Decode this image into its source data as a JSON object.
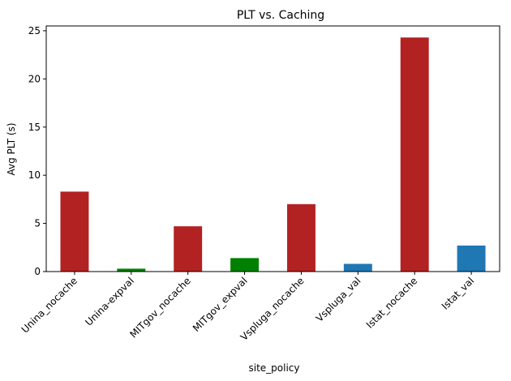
{
  "chart_data": {
    "type": "bar",
    "title": "PLT vs. Caching",
    "xlabel": "site_policy",
    "ylabel": "Avg PLT (s)",
    "ylim": [
      0,
      25.5
    ],
    "yticks": [
      0,
      5,
      10,
      15,
      20,
      25
    ],
    "grid": false,
    "legend": "none",
    "categories": [
      "Unina_nocache",
      "Unina-expval",
      "MITgov_nocache",
      "MITgov_expval",
      "Vspluga_nocache",
      "Vspluga_val",
      "Istat_nocache",
      "Istat_val"
    ],
    "values": [
      8.3,
      0.3,
      4.7,
      1.4,
      7.0,
      0.8,
      24.3,
      2.7
    ],
    "colors": [
      "#b22222",
      "#008000",
      "#b22222",
      "#008000",
      "#b22222",
      "#1f77b4",
      "#b22222",
      "#1f77b4"
    ]
  }
}
